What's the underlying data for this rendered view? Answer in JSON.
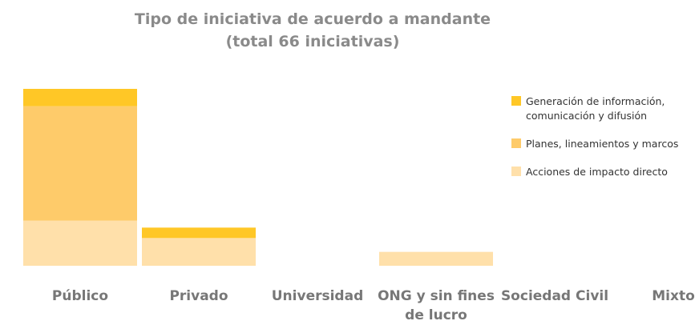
{
  "chart_data": {
    "type": "stacked-bar",
    "title": "Tipo de iniciativa de acuerdo a mandante",
    "subtitle": "(total 66 iniciativas)",
    "categories": [
      "Público",
      "Privado",
      "Universidad",
      "ONG y sin fines de lucro",
      "Sociedad Civil",
      "Mixto"
    ],
    "series": [
      {
        "name": "Acciones de impacto directo",
        "color": "#ffe0aa",
        "values": [
          13,
          8,
          0,
          4,
          0,
          0
        ]
      },
      {
        "name": "Planes, lineamientos y marcos",
        "color": "#fecb6a",
        "values": [
          33,
          0,
          0,
          0,
          0,
          0
        ]
      },
      {
        "name": "Generación de información, comunicación y difusión",
        "color": "#ffc726",
        "values": [
          5,
          3,
          0,
          0,
          0,
          0
        ]
      }
    ]
  }
}
